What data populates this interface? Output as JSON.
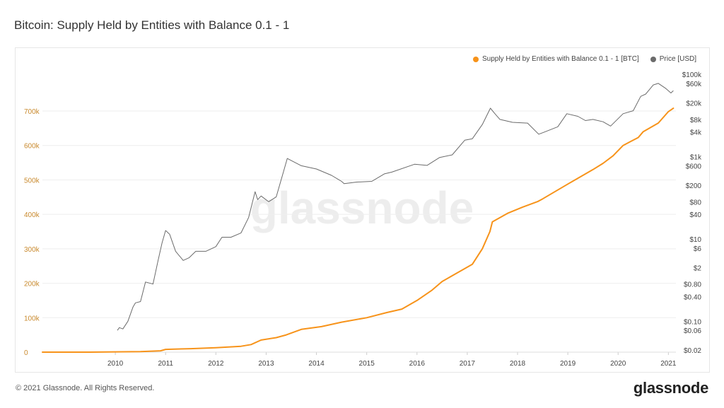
{
  "title": "Bitcoin: Supply Held by Entities with Balance 0.1 - 1",
  "footer": "© 2021 Glassnode. All Rights Reserved.",
  "brand": "glassnode",
  "watermark": "glassnode",
  "colors": {
    "supply": "#f7931a",
    "price": "#6b6b6b",
    "grid": "#eeeeee",
    "left_axis": "#c98a2e"
  },
  "chart_data": {
    "type": "line",
    "title": "Bitcoin: Supply Held by Entities with Balance 0.1 - 1",
    "grid": true,
    "legend_position": "top-right",
    "x_ticks": [
      "2010",
      "2011",
      "2012",
      "2013",
      "2014",
      "2015",
      "2016",
      "2017",
      "2018",
      "2019",
      "2020",
      "2021"
    ],
    "y_left": {
      "ticks": [
        "0",
        "100k",
        "200k",
        "300k",
        "400k",
        "500k",
        "600k",
        "700k"
      ],
      "tick_values": [
        0,
        100000,
        200000,
        300000,
        400000,
        500000,
        600000,
        700000
      ],
      "range": [
        0,
        780000
      ]
    },
    "y_right": {
      "scale": "log",
      "ticks": [
        "$100k",
        "$60k",
        "$20k",
        "$8k",
        "$4k",
        "$1k",
        "$600",
        "$200",
        "$80",
        "$40",
        "$10",
        "$6",
        "$2",
        "$0.80",
        "$0.40",
        "$0.10",
        "$0.06",
        "$0.02"
      ],
      "tick_values": [
        100000,
        60000,
        20000,
        8000,
        4000,
        1000,
        600,
        200,
        80,
        40,
        10,
        6,
        2,
        0.8,
        0.4,
        0.1,
        0.06,
        0.02
      ],
      "range": [
        0.02,
        100000
      ]
    },
    "series": [
      {
        "name": "Supply Held by Entities with Balance 0.1 - 1 [BTC]",
        "axis": "left",
        "x": [
          2009.05,
          2010.0,
          2011.0,
          2011.4,
          2011.5,
          2012.0,
          2012.5,
          2013.0,
          2013.2,
          2013.4,
          2013.7,
          2013.9,
          2014.2,
          2014.6,
          2015.0,
          2015.5,
          2015.9,
          2016.2,
          2016.5,
          2016.8,
          2017.0,
          2017.3,
          2017.6,
          2017.8,
          2017.95,
          2018.0,
          2018.3,
          2018.6,
          2018.9,
          2019.0,
          2019.5,
          2020.0,
          2020.2,
          2020.4,
          2020.6,
          2020.9,
          2021.0,
          2021.3,
          2021.5,
          2021.6
        ],
        "y": [
          0,
          0,
          1500,
          4000,
          8000,
          10000,
          13000,
          17000,
          22000,
          35000,
          42000,
          50000,
          66000,
          74000,
          87000,
          100000,
          115000,
          125000,
          150000,
          180000,
          205000,
          230000,
          255000,
          300000,
          350000,
          378000,
          403000,
          421000,
          437000,
          445000,
          488000,
          530000,
          548000,
          570000,
          600000,
          623000,
          640000,
          665000,
          698000,
          708000
        ]
      },
      {
        "name": "Price [USD]",
        "axis": "right",
        "x": [
          2010.54,
          2010.58,
          2010.65,
          2010.75,
          2010.85,
          2010.9,
          2011.0,
          2011.1,
          2011.25,
          2011.35,
          2011.43,
          2011.5,
          2011.58,
          2011.7,
          2011.85,
          2011.97,
          2012.1,
          2012.3,
          2012.5,
          2012.62,
          2012.8,
          2013.0,
          2013.15,
          2013.28,
          2013.33,
          2013.4,
          2013.55,
          2013.7,
          2013.85,
          2013.92,
          2014.0,
          2014.2,
          2014.5,
          2014.8,
          2015.0,
          2015.05,
          2015.3,
          2015.6,
          2015.85,
          2016.0,
          2016.45,
          2016.7,
          2016.95,
          2017.2,
          2017.45,
          2017.6,
          2017.8,
          2017.96,
          2018.05,
          2018.15,
          2018.4,
          2018.7,
          2018.92,
          2019.0,
          2019.3,
          2019.48,
          2019.7,
          2019.85,
          2020.0,
          2020.2,
          2020.35,
          2020.6,
          2020.8,
          2020.95,
          2021.05,
          2021.2,
          2021.3,
          2021.45,
          2021.55,
          2021.6
        ],
        "y": [
          0.06,
          0.07,
          0.065,
          0.1,
          0.22,
          0.28,
          0.3,
          0.9,
          0.8,
          3,
          8,
          16,
          13,
          5,
          3,
          3.5,
          5,
          5,
          6.5,
          11,
          11,
          14,
          33,
          140,
          90,
          110,
          80,
          105,
          450,
          900,
          800,
          600,
          500,
          350,
          250,
          220,
          240,
          250,
          380,
          420,
          650,
          610,
          950,
          1100,
          2500,
          2700,
          6000,
          15000,
          11000,
          8000,
          6800,
          6500,
          3500,
          3800,
          5300,
          11000,
          9500,
          7500,
          8000,
          7000,
          5500,
          11000,
          13000,
          29000,
          33000,
          55000,
          60000,
          45000,
          35000,
          40000
        ]
      }
    ]
  }
}
